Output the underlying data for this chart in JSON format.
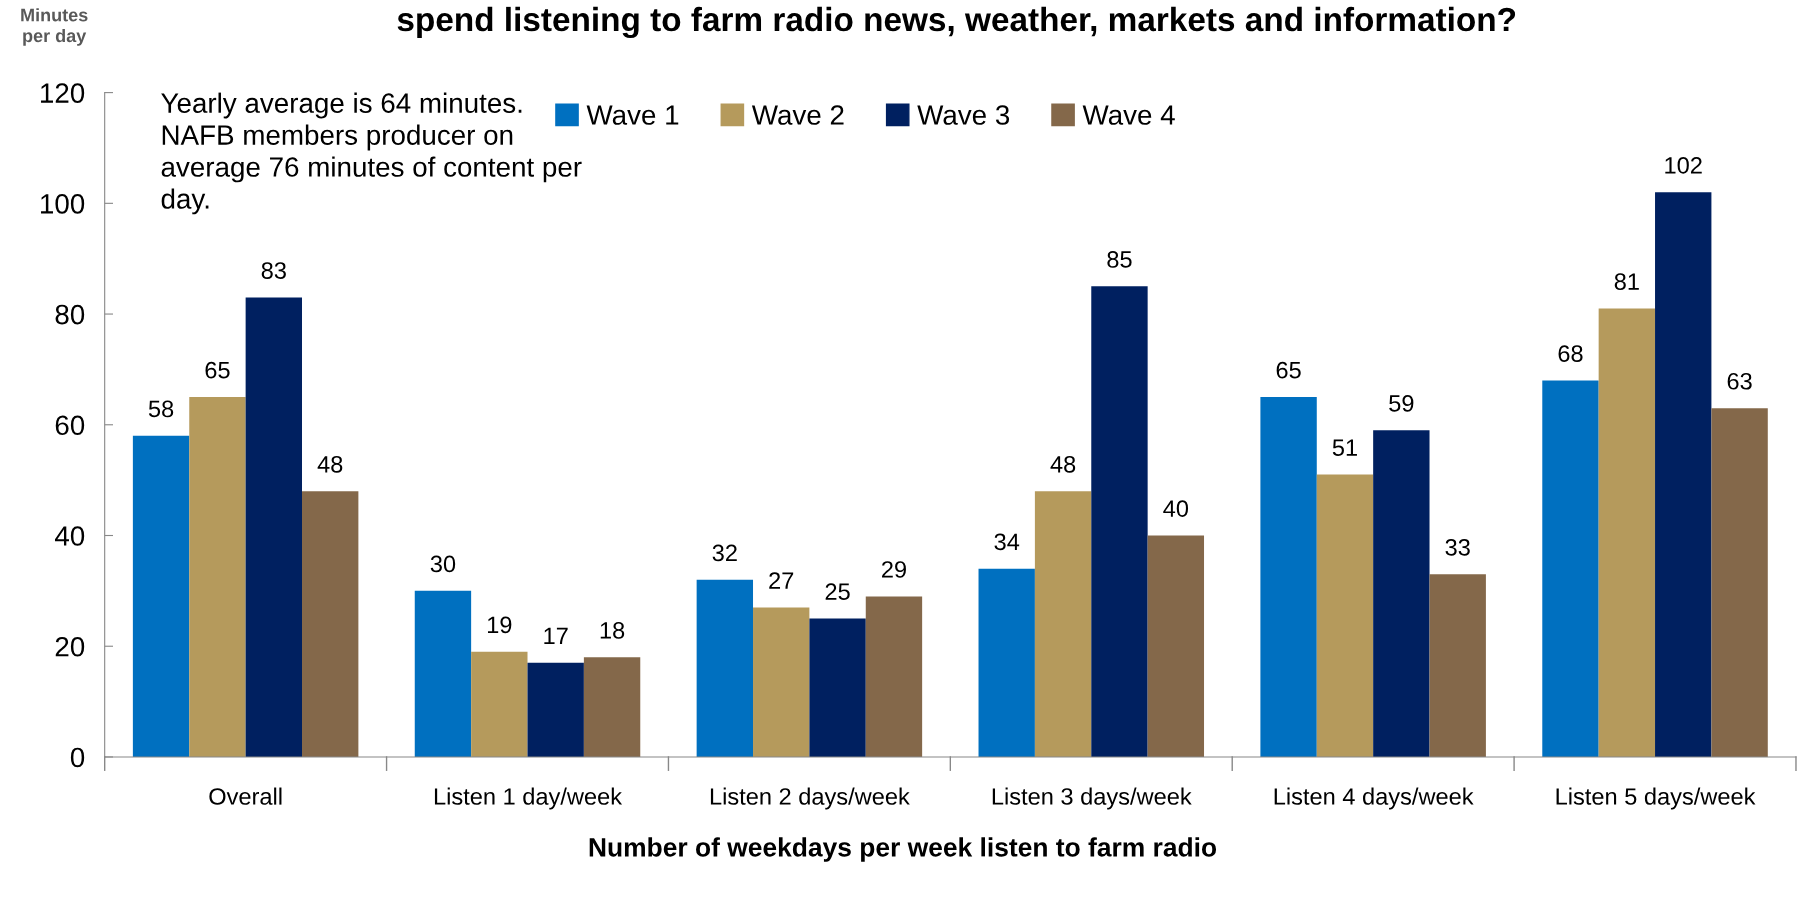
{
  "chart_data": {
    "type": "bar",
    "title": "spend listening to farm radio news, weather, markets and information?",
    "ylabel": "Minutes\nper day",
    "xlabel": "Number of weekdays per week listen to farm radio",
    "categories": [
      "Overall",
      "Listen 1 day/week",
      "Listen 2 days/week",
      "Listen 3 days/week",
      "Listen 4 days/week",
      "Listen 5 days/week"
    ],
    "series": [
      {
        "name": "Wave 1",
        "color": "#0070c0",
        "values": [
          58,
          30,
          32,
          34,
          65,
          68
        ]
      },
      {
        "name": "Wave 2",
        "color": "#b59a5c",
        "values": [
          65,
          19,
          27,
          48,
          51,
          81
        ]
      },
      {
        "name": "Wave 3",
        "color": "#002060",
        "values": [
          83,
          17,
          25,
          85,
          59,
          102
        ]
      },
      {
        "name": "Wave 4",
        "color": "#84684a",
        "values": [
          48,
          18,
          29,
          40,
          33,
          63
        ]
      }
    ],
    "ylim": [
      0,
      120
    ],
    "yticks": [
      0,
      20,
      40,
      60,
      80,
      100,
      120
    ],
    "data_labels": true,
    "legend": "top",
    "grid": false,
    "annotations": [
      "Yearly average is 64 minutes. NAFB members producer on average 76 minutes of content per day."
    ]
  }
}
